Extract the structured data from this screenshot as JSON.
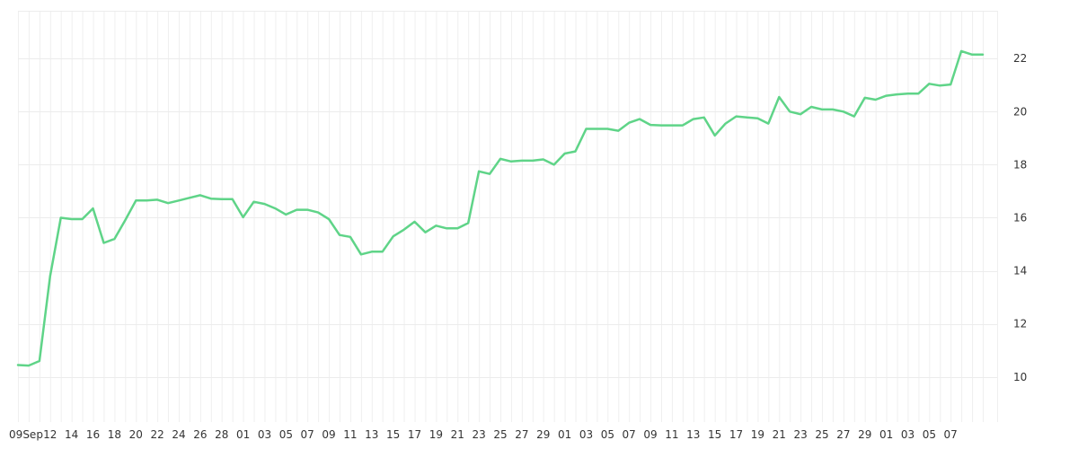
{
  "chart_data": {
    "type": "line",
    "title": "",
    "xlabel": "",
    "ylabel": "",
    "ylim": [
      8.3,
      23.8
    ],
    "y_ticks": [
      10,
      12,
      14,
      16,
      18,
      20,
      22
    ],
    "y_tick_labels": [
      "10",
      "12",
      "14",
      "16",
      "18",
      "20",
      "22"
    ],
    "y_axis_position": "right",
    "grid": true,
    "x_tick_labels": [
      "09Sep",
      "12",
      "14",
      "16",
      "18",
      "20",
      "22",
      "24",
      "26",
      "28",
      "01",
      "03",
      "05",
      "07",
      "09",
      "11",
      "13",
      "15",
      "17",
      "19",
      "21",
      "23",
      "25",
      "27",
      "29",
      "01",
      "03",
      "05",
      "07",
      "09",
      "11",
      "13",
      "15",
      "17",
      "19",
      "21",
      "23",
      "25",
      "27",
      "29",
      "01",
      "03",
      "05",
      "07"
    ],
    "series": [
      {
        "color": "#5fd488",
        "values": [
          10.45,
          10.43,
          10.6,
          13.8,
          16.0,
          15.95,
          15.95,
          16.35,
          15.05,
          15.2,
          15.9,
          16.65,
          16.65,
          16.68,
          16.55,
          16.65,
          16.75,
          16.85,
          16.72,
          16.7,
          16.7,
          16.02,
          16.6,
          16.52,
          16.35,
          16.12,
          16.3,
          16.3,
          16.2,
          15.95,
          15.35,
          15.28,
          14.62,
          14.72,
          14.72,
          15.3,
          15.55,
          15.85,
          15.45,
          15.7,
          15.6,
          15.6,
          15.8,
          17.75,
          17.65,
          18.22,
          18.12,
          18.15,
          18.15,
          18.2,
          18.0,
          18.42,
          18.5,
          19.35,
          19.35,
          19.35,
          19.28,
          19.58,
          19.72,
          19.5,
          19.48,
          19.48,
          19.48,
          19.72,
          19.78,
          19.1,
          19.55,
          19.82,
          19.78,
          19.75,
          19.55,
          20.55,
          20.0,
          19.9,
          20.18,
          20.08,
          20.08,
          20.0,
          19.82,
          20.52,
          20.45,
          20.6,
          20.65,
          20.68,
          20.68,
          21.05,
          20.98,
          21.02,
          22.28,
          22.15,
          22.15
        ]
      }
    ]
  }
}
